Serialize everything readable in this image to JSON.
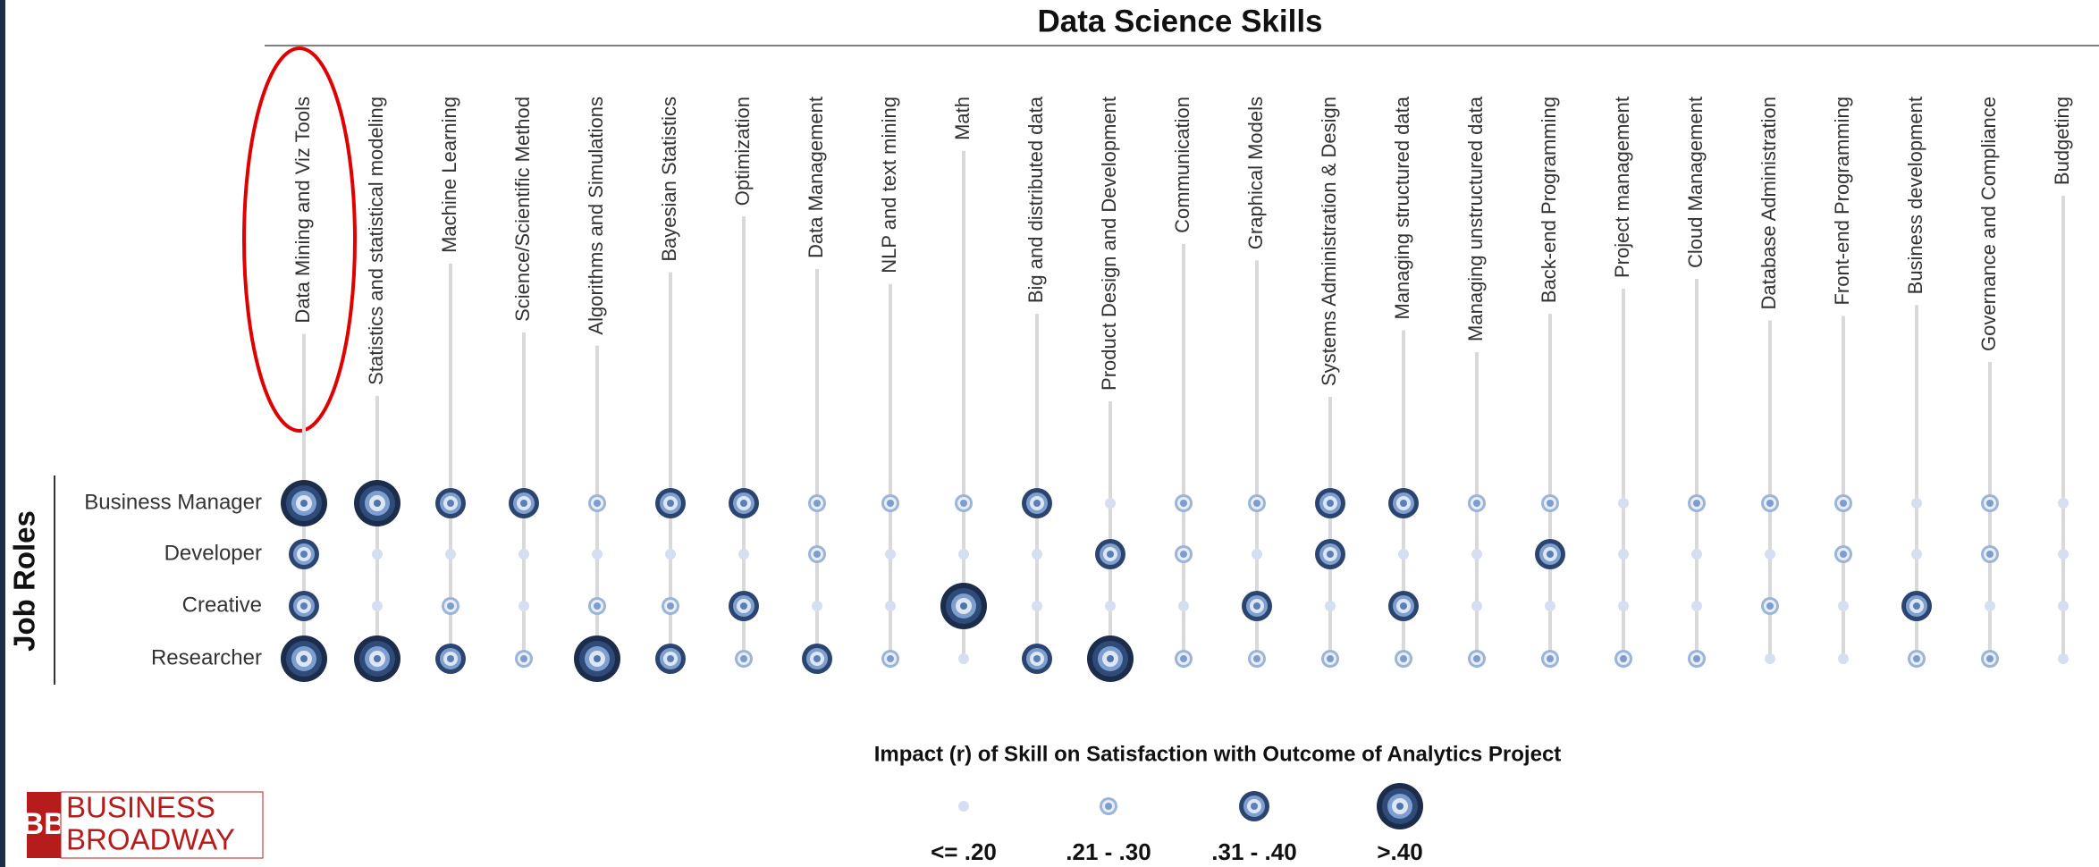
{
  "chart_data": {
    "type": "dotmatrix",
    "title": "Data Science Skills",
    "y_axis_label": "Job Roles",
    "categories": [
      "Data Mining and Viz Tools",
      "Statistics and statistical modeling",
      "Machine Learning",
      "Science/Scientific Method",
      "Algorithms and Simulations",
      "Bayesian Statistics",
      "Optimization",
      "Data Management",
      "NLP and text mining",
      "Math",
      "Big and distributed data",
      "Product Design and Development",
      "Communication",
      "Graphical Models",
      "Systems Administration & Design",
      "Managing structured data",
      "Managing unstructured data",
      "Back-end Programming",
      "Project management",
      "Cloud Management",
      "Database Administration",
      "Front-end Programming",
      "Business development",
      "Governance and Compliance",
      "Budgeting"
    ],
    "series": [
      {
        "name": "Business Manager",
        "values": [
          3,
          3,
          2,
          2,
          1,
          2,
          2,
          1,
          1,
          1,
          2,
          0,
          1,
          1,
          2,
          2,
          1,
          1,
          0,
          1,
          1,
          1,
          0,
          1,
          0
        ]
      },
      {
        "name": "Developer",
        "values": [
          2,
          0,
          0,
          0,
          0,
          0,
          0,
          1,
          0,
          0,
          0,
          2,
          1,
          0,
          2,
          0,
          0,
          2,
          0,
          0,
          0,
          1,
          0,
          1,
          0
        ]
      },
      {
        "name": "Creative",
        "values": [
          2,
          0,
          1,
          0,
          1,
          1,
          2,
          0,
          0,
          3,
          0,
          0,
          0,
          2,
          0,
          2,
          0,
          0,
          0,
          0,
          1,
          0,
          2,
          0,
          0
        ]
      },
      {
        "name": "Researcher",
        "values": [
          3,
          3,
          2,
          1,
          3,
          2,
          1,
          2,
          1,
          0,
          2,
          3,
          1,
          1,
          1,
          1,
          1,
          1,
          1,
          1,
          0,
          0,
          1,
          1,
          0
        ]
      }
    ],
    "legend": {
      "title": "Impact (r) of Skill on Satisfaction with Outcome of Analytics Project",
      "labels": [
        "<= .20",
        ".21 - .30",
        ".31 - .40",
        ">.40"
      ]
    },
    "logo": {
      "initials": "BB",
      "line1": "BUSINESS",
      "line2": "BROADWAY"
    }
  }
}
